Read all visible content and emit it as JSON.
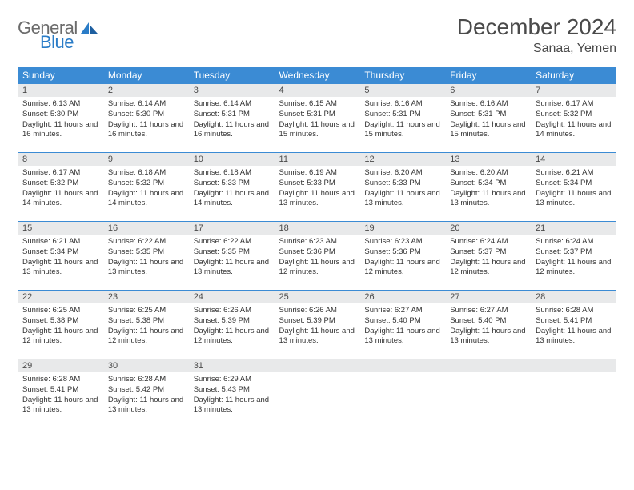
{
  "logo": {
    "word1": "General",
    "word2": "Blue"
  },
  "title": "December 2024",
  "location": "Sanaa, Yemen",
  "colors": {
    "header_bg": "#3b8bd4",
    "header_text": "#ffffff",
    "daynum_bg": "#e8e9ea",
    "border": "#3b8bd4",
    "logo_gray": "#6b6b6b",
    "logo_blue": "#2a7cc7",
    "text": "#333333"
  },
  "weekdays": [
    "Sunday",
    "Monday",
    "Tuesday",
    "Wednesday",
    "Thursday",
    "Friday",
    "Saturday"
  ],
  "weeks": [
    [
      {
        "n": "1",
        "sr": "6:13 AM",
        "ss": "5:30 PM",
        "dl": "11 hours and 16 minutes."
      },
      {
        "n": "2",
        "sr": "6:14 AM",
        "ss": "5:30 PM",
        "dl": "11 hours and 16 minutes."
      },
      {
        "n": "3",
        "sr": "6:14 AM",
        "ss": "5:31 PM",
        "dl": "11 hours and 16 minutes."
      },
      {
        "n": "4",
        "sr": "6:15 AM",
        "ss": "5:31 PM",
        "dl": "11 hours and 15 minutes."
      },
      {
        "n": "5",
        "sr": "6:16 AM",
        "ss": "5:31 PM",
        "dl": "11 hours and 15 minutes."
      },
      {
        "n": "6",
        "sr": "6:16 AM",
        "ss": "5:31 PM",
        "dl": "11 hours and 15 minutes."
      },
      {
        "n": "7",
        "sr": "6:17 AM",
        "ss": "5:32 PM",
        "dl": "11 hours and 14 minutes."
      }
    ],
    [
      {
        "n": "8",
        "sr": "6:17 AM",
        "ss": "5:32 PM",
        "dl": "11 hours and 14 minutes."
      },
      {
        "n": "9",
        "sr": "6:18 AM",
        "ss": "5:32 PM",
        "dl": "11 hours and 14 minutes."
      },
      {
        "n": "10",
        "sr": "6:18 AM",
        "ss": "5:33 PM",
        "dl": "11 hours and 14 minutes."
      },
      {
        "n": "11",
        "sr": "6:19 AM",
        "ss": "5:33 PM",
        "dl": "11 hours and 13 minutes."
      },
      {
        "n": "12",
        "sr": "6:20 AM",
        "ss": "5:33 PM",
        "dl": "11 hours and 13 minutes."
      },
      {
        "n": "13",
        "sr": "6:20 AM",
        "ss": "5:34 PM",
        "dl": "11 hours and 13 minutes."
      },
      {
        "n": "14",
        "sr": "6:21 AM",
        "ss": "5:34 PM",
        "dl": "11 hours and 13 minutes."
      }
    ],
    [
      {
        "n": "15",
        "sr": "6:21 AM",
        "ss": "5:34 PM",
        "dl": "11 hours and 13 minutes."
      },
      {
        "n": "16",
        "sr": "6:22 AM",
        "ss": "5:35 PM",
        "dl": "11 hours and 13 minutes."
      },
      {
        "n": "17",
        "sr": "6:22 AM",
        "ss": "5:35 PM",
        "dl": "11 hours and 13 minutes."
      },
      {
        "n": "18",
        "sr": "6:23 AM",
        "ss": "5:36 PM",
        "dl": "11 hours and 12 minutes."
      },
      {
        "n": "19",
        "sr": "6:23 AM",
        "ss": "5:36 PM",
        "dl": "11 hours and 12 minutes."
      },
      {
        "n": "20",
        "sr": "6:24 AM",
        "ss": "5:37 PM",
        "dl": "11 hours and 12 minutes."
      },
      {
        "n": "21",
        "sr": "6:24 AM",
        "ss": "5:37 PM",
        "dl": "11 hours and 12 minutes."
      }
    ],
    [
      {
        "n": "22",
        "sr": "6:25 AM",
        "ss": "5:38 PM",
        "dl": "11 hours and 12 minutes."
      },
      {
        "n": "23",
        "sr": "6:25 AM",
        "ss": "5:38 PM",
        "dl": "11 hours and 12 minutes."
      },
      {
        "n": "24",
        "sr": "6:26 AM",
        "ss": "5:39 PM",
        "dl": "11 hours and 12 minutes."
      },
      {
        "n": "25",
        "sr": "6:26 AM",
        "ss": "5:39 PM",
        "dl": "11 hours and 13 minutes."
      },
      {
        "n": "26",
        "sr": "6:27 AM",
        "ss": "5:40 PM",
        "dl": "11 hours and 13 minutes."
      },
      {
        "n": "27",
        "sr": "6:27 AM",
        "ss": "5:40 PM",
        "dl": "11 hours and 13 minutes."
      },
      {
        "n": "28",
        "sr": "6:28 AM",
        "ss": "5:41 PM",
        "dl": "11 hours and 13 minutes."
      }
    ],
    [
      {
        "n": "29",
        "sr": "6:28 AM",
        "ss": "5:41 PM",
        "dl": "11 hours and 13 minutes."
      },
      {
        "n": "30",
        "sr": "6:28 AM",
        "ss": "5:42 PM",
        "dl": "11 hours and 13 minutes."
      },
      {
        "n": "31",
        "sr": "6:29 AM",
        "ss": "5:43 PM",
        "dl": "11 hours and 13 minutes."
      },
      null,
      null,
      null,
      null
    ]
  ],
  "labels": {
    "sunrise": "Sunrise:",
    "sunset": "Sunset:",
    "daylight": "Daylight:"
  }
}
